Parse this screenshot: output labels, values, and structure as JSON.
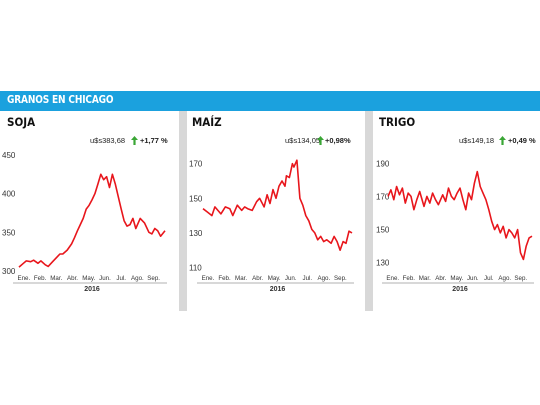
{
  "header": {
    "title": "GRANOS EN CHICAGO"
  },
  "colors": {
    "header": "#1ba1de",
    "line": "#e8161c",
    "arrow": "#3aa635",
    "separator": "#d8d8d8"
  },
  "icons": {
    "change": "up-arrow-icon"
  },
  "chart_data": [
    {
      "type": "line",
      "title": "SOJA",
      "price_label": "u$s383,68",
      "change_label": "+1,77 %",
      "ylim": [
        300,
        450
      ],
      "yticks": [
        300,
        350,
        400,
        450
      ],
      "xticks": [
        "Ene.",
        "Feb.",
        "Mar.",
        "Abr.",
        "May.",
        "Jun.",
        "Jul.",
        "Ago.",
        "Sep."
      ],
      "year": "2016",
      "x": [
        0.0,
        0.03,
        0.05,
        0.08,
        0.1,
        0.13,
        0.15,
        0.18,
        0.2,
        0.23,
        0.26,
        0.28,
        0.3,
        0.33,
        0.36,
        0.38,
        0.4,
        0.42,
        0.44,
        0.46,
        0.48,
        0.5,
        0.52,
        0.54,
        0.56,
        0.58,
        0.6,
        0.62,
        0.64,
        0.66,
        0.68,
        0.7,
        0.72,
        0.74,
        0.76,
        0.78,
        0.8,
        0.83,
        0.86,
        0.89,
        0.91,
        0.93,
        0.95,
        0.97,
        1.0
      ],
      "y": [
        305,
        310,
        313,
        312,
        314,
        310,
        313,
        308,
        306,
        312,
        318,
        322,
        322,
        327,
        335,
        343,
        352,
        360,
        368,
        380,
        385,
        392,
        400,
        412,
        425,
        418,
        422,
        408,
        425,
        412,
        396,
        380,
        365,
        358,
        360,
        368,
        355,
        368,
        362,
        350,
        348,
        355,
        352,
        345,
        352
      ]
    },
    {
      "type": "line",
      "title": "MAÍZ",
      "price_label": "u$s134,05",
      "change_label": "+0,98%",
      "ylim": [
        108,
        175
      ],
      "yticks": [
        110,
        130,
        150,
        170
      ],
      "xticks": [
        "Ene.",
        "Feb.",
        "Mar.",
        "Abr.",
        "May.",
        "Jun.",
        "Jul.",
        "Ago.",
        "Sep."
      ],
      "year": "2016",
      "x": [
        0.0,
        0.03,
        0.06,
        0.08,
        0.1,
        0.12,
        0.15,
        0.18,
        0.2,
        0.23,
        0.26,
        0.28,
        0.3,
        0.33,
        0.36,
        0.38,
        0.41,
        0.43,
        0.45,
        0.47,
        0.49,
        0.51,
        0.53,
        0.55,
        0.56,
        0.58,
        0.6,
        0.61,
        0.63,
        0.65,
        0.67,
        0.69,
        0.71,
        0.73,
        0.75,
        0.77,
        0.79,
        0.81,
        0.83,
        0.86,
        0.88,
        0.9,
        0.92,
        0.94,
        0.96,
        0.98,
        1.0
      ],
      "y": [
        144,
        142,
        140,
        145,
        143,
        141,
        145,
        144,
        140,
        146,
        143,
        145,
        144,
        143,
        148,
        150,
        145,
        152,
        147,
        155,
        150,
        157,
        160,
        157,
        163,
        162,
        170,
        168,
        172,
        150,
        146,
        140,
        137,
        132,
        130,
        126,
        128,
        125,
        126,
        124,
        128,
        125,
        120,
        125,
        124,
        131,
        130
      ]
    },
    {
      "type": "line",
      "title": "TRIGO",
      "price_label": "u$s149,18",
      "change_label": "+0,49 %",
      "ylim": [
        125,
        195
      ],
      "yticks": [
        130,
        150,
        170,
        190
      ],
      "xticks": [
        "Ene.",
        "Feb.",
        "Mar.",
        "Abr.",
        "May.",
        "Jun.",
        "Jul.",
        "Ago.",
        "Sep."
      ],
      "year": "2016",
      "x": [
        0.0,
        0.02,
        0.04,
        0.06,
        0.08,
        0.1,
        0.12,
        0.14,
        0.16,
        0.18,
        0.2,
        0.22,
        0.25,
        0.27,
        0.29,
        0.31,
        0.33,
        0.35,
        0.38,
        0.4,
        0.42,
        0.44,
        0.46,
        0.48,
        0.5,
        0.52,
        0.54,
        0.56,
        0.58,
        0.6,
        0.62,
        0.64,
        0.66,
        0.68,
        0.7,
        0.72,
        0.74,
        0.76,
        0.78,
        0.8,
        0.82,
        0.84,
        0.86,
        0.88,
        0.9,
        0.92,
        0.94,
        0.96,
        0.98,
        1.0
      ],
      "y": [
        170,
        174,
        168,
        176,
        171,
        175,
        166,
        172,
        170,
        162,
        168,
        173,
        164,
        170,
        166,
        172,
        168,
        165,
        171,
        167,
        175,
        170,
        168,
        172,
        175,
        168,
        162,
        172,
        168,
        178,
        185,
        176,
        172,
        168,
        162,
        155,
        150,
        153,
        148,
        152,
        145,
        150,
        148,
        145,
        150,
        136,
        132,
        140,
        145,
        146
      ]
    }
  ]
}
